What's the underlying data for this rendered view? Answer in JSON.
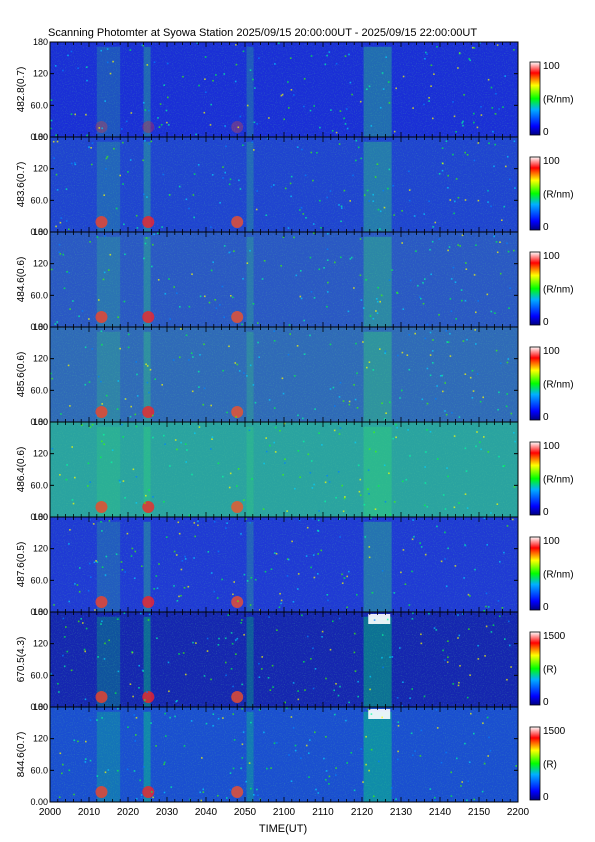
{
  "title": "Scanning Photomter at Syowa Station 2025/09/15 20:00:00UT - 2025/09/15 22:00:00UT",
  "chart_data": {
    "type": "heatmap",
    "xlabel": "TIME(UT)",
    "x_ticks": [
      "2000",
      "2010",
      "2020",
      "2030",
      "2040",
      "2050",
      "2100",
      "2110",
      "2120",
      "2130",
      "2140",
      "2150",
      "2200"
    ],
    "y_ticks": [
      "0.00",
      "60.0",
      "120",
      "180"
    ],
    "panels": [
      {
        "ylabel": "482.8(0.7)",
        "cbar_max": "100",
        "cbar_min": "0",
        "cbar_unit": "(R/nm)",
        "bg": "#1a2fd6"
      },
      {
        "ylabel": "483.6(0.7)",
        "cbar_max": "100",
        "cbar_min": "0",
        "cbar_unit": "(R/nm)",
        "bg": "#1f44d0"
      },
      {
        "ylabel": "484.6(0.6)",
        "cbar_max": "100",
        "cbar_min": "0",
        "cbar_unit": "(R/nm)",
        "bg": "#2a58c4"
      },
      {
        "ylabel": "485.6(0.6)",
        "cbar_max": "100",
        "cbar_min": "0",
        "cbar_unit": "(R/nm)",
        "bg": "#2f6ab8"
      },
      {
        "ylabel": "486.4(0.6)",
        "cbar_max": "100",
        "cbar_min": "0",
        "cbar_unit": "(R/nm)",
        "bg": "#2aa3a0"
      },
      {
        "ylabel": "487.6(0.5)",
        "cbar_max": "100",
        "cbar_min": "0",
        "cbar_unit": "(R/nm)",
        "bg": "#1f3ad4"
      },
      {
        "ylabel": "670.5(4.3)",
        "cbar_max": "1500",
        "cbar_min": "0",
        "cbar_unit": "(R)",
        "bg": "#1526b0"
      },
      {
        "ylabel": "844.6(0.7)",
        "cbar_max": "1500",
        "cbar_min": "0",
        "cbar_unit": "(R)",
        "bg": "#1a4fd0"
      }
    ],
    "colorscale": [
      "#000080",
      "#0000ff",
      "#00c0ff",
      "#00ff00",
      "#ffff00",
      "#ff0000",
      "#ffffff"
    ]
  }
}
